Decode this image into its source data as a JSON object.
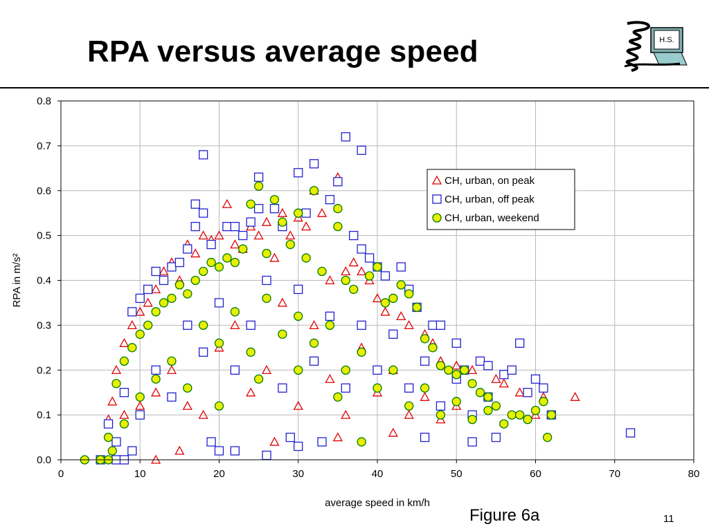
{
  "slide": {
    "title": "RPA versus average speed",
    "figure_caption": "Figure 6a",
    "slide_number": "11",
    "logo_text": "H.S."
  },
  "chart_data": {
    "type": "scatter",
    "xlabel": "average speed in km/h",
    "ylabel": "RPA in m/s²",
    "xlim": [
      0,
      80
    ],
    "ylim": [
      0,
      0.8
    ],
    "x_ticks": [
      "0",
      "10",
      "20",
      "30",
      "40",
      "50",
      "60",
      "70",
      "80"
    ],
    "y_ticks": [
      "0.0",
      "0.1",
      "0.2",
      "0.3",
      "0.4",
      "0.5",
      "0.6",
      "0.7",
      "0.8"
    ],
    "grid": true,
    "legend_position": "top-right",
    "series": [
      {
        "name": "CH, urban, on peak",
        "marker": "triangle",
        "color": "#e00000",
        "points": [
          [
            6,
            0.09
          ],
          [
            6.5,
            0.13
          ],
          [
            7,
            0.2
          ],
          [
            8,
            0.26
          ],
          [
            9,
            0.3
          ],
          [
            10,
            0.33
          ],
          [
            11,
            0.35
          ],
          [
            12,
            0
          ],
          [
            12,
            0.38
          ],
          [
            13,
            0.42
          ],
          [
            14,
            0.44
          ],
          [
            15,
            0.02
          ],
          [
            15,
            0.4
          ],
          [
            16,
            0.48
          ],
          [
            17,
            0.46
          ],
          [
            18,
            0.5
          ],
          [
            19,
            0.49
          ],
          [
            20,
            0.5
          ],
          [
            21,
            0.57
          ],
          [
            22,
            0.48
          ],
          [
            23,
            0.47
          ],
          [
            24,
            0.52
          ],
          [
            25,
            0.5
          ],
          [
            26,
            0.53
          ],
          [
            27,
            0.04
          ],
          [
            27,
            0.45
          ],
          [
            28,
            0.55
          ],
          [
            29,
            0.5
          ],
          [
            30,
            0.54
          ],
          [
            31,
            0.52
          ],
          [
            32,
            0.6
          ],
          [
            33,
            0.55
          ],
          [
            35,
            0.63
          ],
          [
            34,
            0.4
          ],
          [
            35,
            0.05
          ],
          [
            36,
            0.42
          ],
          [
            37,
            0.44
          ],
          [
            38,
            0.42
          ],
          [
            39,
            0.4
          ],
          [
            40,
            0.36
          ],
          [
            41,
            0.33
          ],
          [
            42,
            0.06
          ],
          [
            43,
            0.32
          ],
          [
            44,
            0.3
          ],
          [
            45,
            0.34
          ],
          [
            46,
            0.28
          ],
          [
            47,
            0.26
          ],
          [
            48,
            0.22
          ],
          [
            50,
            0.21
          ],
          [
            52,
            0.2
          ],
          [
            54,
            0.21
          ],
          [
            55,
            0.18
          ],
          [
            56,
            0.17
          ],
          [
            58,
            0.15
          ],
          [
            60,
            0.1
          ],
          [
            61,
            0.14
          ],
          [
            62,
            0.1
          ],
          [
            65,
            0.14
          ],
          [
            8,
            0.1
          ],
          [
            10,
            0.12
          ],
          [
            12,
            0.15
          ],
          [
            14,
            0.2
          ],
          [
            16,
            0.12
          ],
          [
            18,
            0.1
          ],
          [
            20,
            0.25
          ],
          [
            22,
            0.3
          ],
          [
            24,
            0.15
          ],
          [
            26,
            0.2
          ],
          [
            28,
            0.35
          ],
          [
            30,
            0.12
          ],
          [
            32,
            0.3
          ],
          [
            34,
            0.18
          ],
          [
            36,
            0.1
          ],
          [
            38,
            0.25
          ],
          [
            40,
            0.15
          ],
          [
            42,
            0.2
          ],
          [
            44,
            0.1
          ],
          [
            46,
            0.14
          ],
          [
            48,
            0.09
          ],
          [
            50,
            0.12
          ]
        ]
      },
      {
        "name": "CH, urban, off peak",
        "marker": "square",
        "color": "#2020d0",
        "points": [
          [
            5,
            0
          ],
          [
            7,
            0
          ],
          [
            8,
            0
          ],
          [
            9,
            0.02
          ],
          [
            7,
            0.04
          ],
          [
            6,
            0.08
          ],
          [
            8,
            0.15
          ],
          [
            9,
            0.33
          ],
          [
            10,
            0.36
          ],
          [
            11,
            0.38
          ],
          [
            12,
            0.42
          ],
          [
            13,
            0.4
          ],
          [
            14,
            0.43
          ],
          [
            15,
            0.44
          ],
          [
            16,
            0.47
          ],
          [
            17,
            0.57
          ],
          [
            17,
            0.52
          ],
          [
            18,
            0.68
          ],
          [
            18,
            0.55
          ],
          [
            19,
            0.48
          ],
          [
            19,
            0.04
          ],
          [
            20,
            0.02
          ],
          [
            21,
            0.52
          ],
          [
            22,
            0.52
          ],
          [
            22,
            0.02
          ],
          [
            23,
            0.5
          ],
          [
            24,
            0.53
          ],
          [
            25,
            0.63
          ],
          [
            25,
            0.56
          ],
          [
            26,
            0.01
          ],
          [
            27,
            0.56
          ],
          [
            28,
            0.52
          ],
          [
            29,
            0.05
          ],
          [
            30,
            0.64
          ],
          [
            30,
            0.03
          ],
          [
            31,
            0.55
          ],
          [
            32,
            0.66
          ],
          [
            33,
            0.04
          ],
          [
            34,
            0.58
          ],
          [
            35,
            0.62
          ],
          [
            36,
            0.72
          ],
          [
            37,
            0.5
          ],
          [
            38,
            0.69
          ],
          [
            38,
            0.47
          ],
          [
            39,
            0.45
          ],
          [
            40,
            0.43
          ],
          [
            41,
            0.41
          ],
          [
            43,
            0.43
          ],
          [
            44,
            0.38
          ],
          [
            45,
            0.34
          ],
          [
            46,
            0.05
          ],
          [
            47,
            0.3
          ],
          [
            48,
            0.3
          ],
          [
            50,
            0.26
          ],
          [
            51,
            0.2
          ],
          [
            52,
            0.04
          ],
          [
            53,
            0.22
          ],
          [
            54,
            0.21
          ],
          [
            55,
            0.05
          ],
          [
            56,
            0.19
          ],
          [
            57,
            0.2
          ],
          [
            58,
            0.26
          ],
          [
            59,
            0.15
          ],
          [
            60,
            0.18
          ],
          [
            61,
            0.16
          ],
          [
            62,
            0.1
          ],
          [
            72,
            0.06
          ],
          [
            10,
            0.1
          ],
          [
            12,
            0.2
          ],
          [
            14,
            0.14
          ],
          [
            16,
            0.3
          ],
          [
            18,
            0.24
          ],
          [
            20,
            0.35
          ],
          [
            22,
            0.2
          ],
          [
            24,
            0.3
          ],
          [
            26,
            0.4
          ],
          [
            28,
            0.16
          ],
          [
            30,
            0.38
          ],
          [
            32,
            0.22
          ],
          [
            34,
            0.32
          ],
          [
            36,
            0.16
          ],
          [
            38,
            0.3
          ],
          [
            40,
            0.2
          ],
          [
            42,
            0.28
          ],
          [
            44,
            0.16
          ],
          [
            46,
            0.22
          ],
          [
            48,
            0.12
          ],
          [
            50,
            0.18
          ],
          [
            52,
            0.1
          ],
          [
            54,
            0.14
          ]
        ]
      },
      {
        "name": "CH, urban, weekend",
        "marker": "circle",
        "color": "#e8f000",
        "edge_color": "#007a00",
        "points": [
          [
            3,
            0
          ],
          [
            5,
            0
          ],
          [
            6,
            0
          ],
          [
            6.5,
            0.02
          ],
          [
            6,
            0.05
          ],
          [
            7,
            0.17
          ],
          [
            8,
            0.22
          ],
          [
            9,
            0.25
          ],
          [
            10,
            0.28
          ],
          [
            11,
            0.3
          ],
          [
            12,
            0.33
          ],
          [
            13,
            0.35
          ],
          [
            14,
            0.36
          ],
          [
            15,
            0.39
          ],
          [
            16,
            0.37
          ],
          [
            17,
            0.4
          ],
          [
            18,
            0.42
          ],
          [
            19,
            0.44
          ],
          [
            20,
            0.43
          ],
          [
            21,
            0.45
          ],
          [
            22,
            0.44
          ],
          [
            23,
            0.47
          ],
          [
            24,
            0.57
          ],
          [
            25,
            0.61
          ],
          [
            26,
            0.46
          ],
          [
            27,
            0.58
          ],
          [
            28,
            0.53
          ],
          [
            29,
            0.48
          ],
          [
            30,
            0.55
          ],
          [
            31,
            0.45
          ],
          [
            32,
            0.6
          ],
          [
            33,
            0.42
          ],
          [
            35,
            0.56
          ],
          [
            35,
            0.52
          ],
          [
            36,
            0.4
          ],
          [
            37,
            0.38
          ],
          [
            38,
            0.04
          ],
          [
            39,
            0.41
          ],
          [
            40,
            0.43
          ],
          [
            41,
            0.35
          ],
          [
            42,
            0.36
          ],
          [
            43,
            0.39
          ],
          [
            44,
            0.37
          ],
          [
            45,
            0.34
          ],
          [
            46,
            0.27
          ],
          [
            47,
            0.25
          ],
          [
            48,
            0.21
          ],
          [
            49,
            0.2
          ],
          [
            50,
            0.19
          ],
          [
            51,
            0.2
          ],
          [
            52,
            0.17
          ],
          [
            53,
            0.15
          ],
          [
            54,
            0.14
          ],
          [
            55,
            0.12
          ],
          [
            56,
            0.08
          ],
          [
            57,
            0.1
          ],
          [
            58,
            0.1
          ],
          [
            59,
            0.09
          ],
          [
            60,
            0.11
          ],
          [
            61,
            0.13
          ],
          [
            62,
            0.1
          ],
          [
            61.5,
            0.05
          ],
          [
            8,
            0.08
          ],
          [
            10,
            0.14
          ],
          [
            12,
            0.18
          ],
          [
            14,
            0.22
          ],
          [
            16,
            0.16
          ],
          [
            18,
            0.3
          ],
          [
            20,
            0.26
          ],
          [
            22,
            0.33
          ],
          [
            24,
            0.24
          ],
          [
            26,
            0.36
          ],
          [
            28,
            0.28
          ],
          [
            30,
            0.32
          ],
          [
            32,
            0.26
          ],
          [
            34,
            0.3
          ],
          [
            36,
            0.2
          ],
          [
            38,
            0.24
          ],
          [
            40,
            0.16
          ],
          [
            42,
            0.2
          ],
          [
            44,
            0.12
          ],
          [
            46,
            0.16
          ],
          [
            48,
            0.1
          ],
          [
            50,
            0.13
          ],
          [
            52,
            0.09
          ],
          [
            54,
            0.11
          ],
          [
            20,
            0.12
          ],
          [
            25,
            0.18
          ],
          [
            30,
            0.2
          ],
          [
            35,
            0.14
          ]
        ]
      }
    ]
  }
}
